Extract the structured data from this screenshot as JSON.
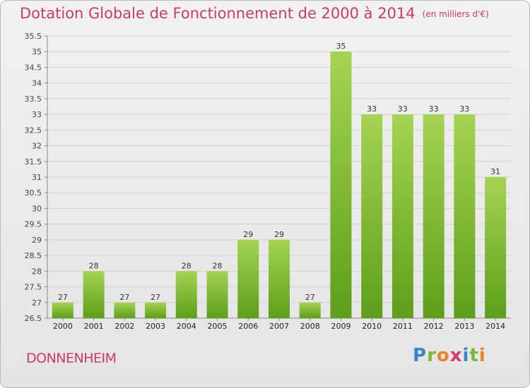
{
  "title": "Dotation Globale de Fonctionnement de 2000 à 2014",
  "unit": "(en milliers d'€)",
  "commune": "DONNENHEIM",
  "logo": {
    "text": "Proxiti",
    "letters": [
      {
        "ch": "P",
        "color": "#3a86c8"
      },
      {
        "ch": "r",
        "color": "#7ab83a"
      },
      {
        "ch": "o",
        "color": "#e8852a"
      },
      {
        "ch": "x",
        "color": "#d23a6a"
      },
      {
        "ch": "i",
        "color": "#3a86c8"
      },
      {
        "ch": "t",
        "color": "#7ab83a"
      },
      {
        "ch": "i",
        "color": "#e8852a"
      }
    ]
  },
  "colors": {
    "bar_top": "#a4d452",
    "bar_bottom": "#5e9e1a",
    "title": "#cc3a66"
  },
  "chart_data": {
    "type": "bar",
    "title": "Dotation Globale de Fonctionnement de 2000 à 2014",
    "subtitle": "(en milliers d'€)",
    "categories": [
      "2000",
      "2001",
      "2002",
      "2003",
      "2004",
      "2005",
      "2006",
      "2007",
      "2008",
      "2009",
      "2010",
      "2011",
      "2012",
      "2013",
      "2014"
    ],
    "values": [
      27,
      28,
      27,
      27,
      28,
      28,
      29,
      29,
      27,
      35,
      33,
      33,
      33,
      33,
      31
    ],
    "ylim": [
      26.5,
      35.5
    ],
    "yticks": [
      26.5,
      27,
      27.5,
      28,
      28.5,
      29,
      29.5,
      30,
      30.5,
      31,
      31.5,
      32,
      32.5,
      33,
      33.5,
      34,
      34.5,
      35,
      35.5
    ],
    "grid": true,
    "xlabel": "",
    "ylabel": ""
  }
}
